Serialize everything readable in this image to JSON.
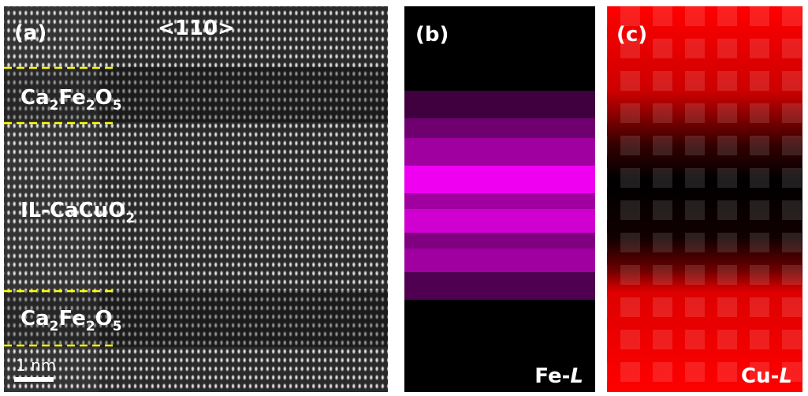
{
  "panel_a": {
    "label": "(a)",
    "direction": "<110>",
    "layers": [
      {
        "parts": [
          "Ca",
          "2",
          "Fe",
          "2",
          "O",
          "5"
        ]
      },
      {
        "parts": [
          "IL-CaCuO",
          "2"
        ]
      },
      {
        "parts": [
          "Ca",
          "2",
          "Fe",
          "2",
          "O",
          "5"
        ]
      }
    ],
    "scale_bar": "1 nm"
  },
  "panel_b": {
    "label": "(b)",
    "element": [
      "Fe-",
      "L"
    ]
  },
  "panel_c": {
    "label": "(c)",
    "element": [
      "Cu-",
      "L"
    ]
  }
}
